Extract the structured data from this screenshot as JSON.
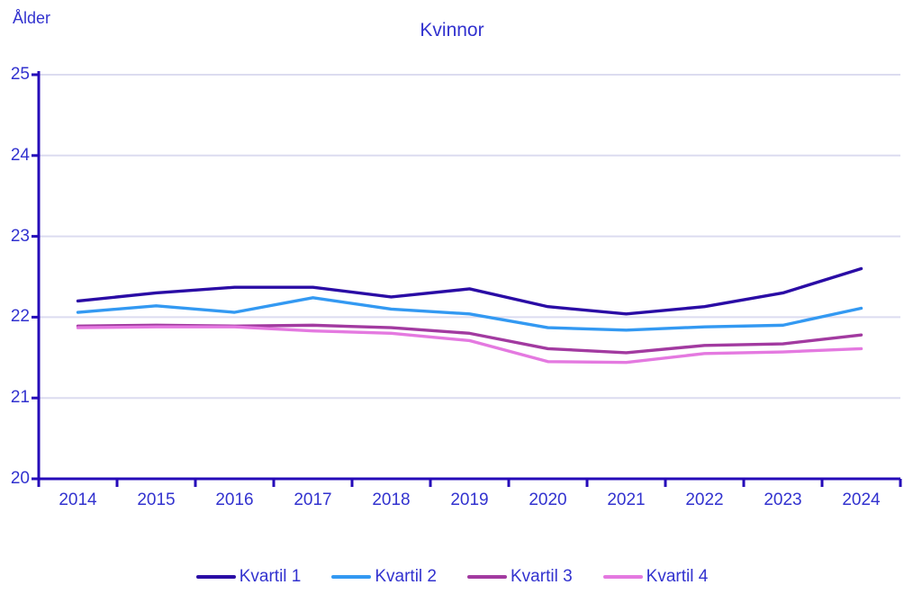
{
  "header": {
    "title": "Kvinnor",
    "unit_label": "Ålder"
  },
  "colors": {
    "text": "#3232CF",
    "axis": "#2509B9",
    "gridline": "#DCDCF0"
  },
  "chart_data": {
    "type": "line",
    "title": "Kvinnor",
    "ylabel": "Ålder",
    "xlabel": "",
    "categories": [
      "2014",
      "2015",
      "2016",
      "2017",
      "2018",
      "2019",
      "2020",
      "2021",
      "2022",
      "2023",
      "2024"
    ],
    "ylim": [
      20,
      25
    ],
    "yticks": [
      25,
      24,
      23,
      22,
      21,
      20
    ],
    "grid": true,
    "legend_position": "bottom",
    "series": [
      {
        "name": "Kvartil 1",
        "color": "#2A0CA5",
        "values": [
          22.2,
          22.3,
          22.37,
          22.37,
          22.25,
          22.35,
          22.13,
          22.04,
          22.13,
          22.3,
          22.6
        ]
      },
      {
        "name": "Kvartil 2",
        "color": "#3399F2",
        "values": [
          22.06,
          22.14,
          22.06,
          22.24,
          22.1,
          22.04,
          21.87,
          21.84,
          21.88,
          21.9,
          22.11
        ]
      },
      {
        "name": "Kvartil 3",
        "color": "#A23AA0",
        "values": [
          21.89,
          21.9,
          21.89,
          21.9,
          21.87,
          21.8,
          21.61,
          21.56,
          21.65,
          21.67,
          21.78
        ]
      },
      {
        "name": "Kvartil 4",
        "color": "#E479E0",
        "values": [
          21.87,
          21.88,
          21.88,
          21.83,
          21.8,
          21.71,
          21.45,
          21.44,
          21.55,
          21.57,
          21.61
        ]
      }
    ]
  }
}
